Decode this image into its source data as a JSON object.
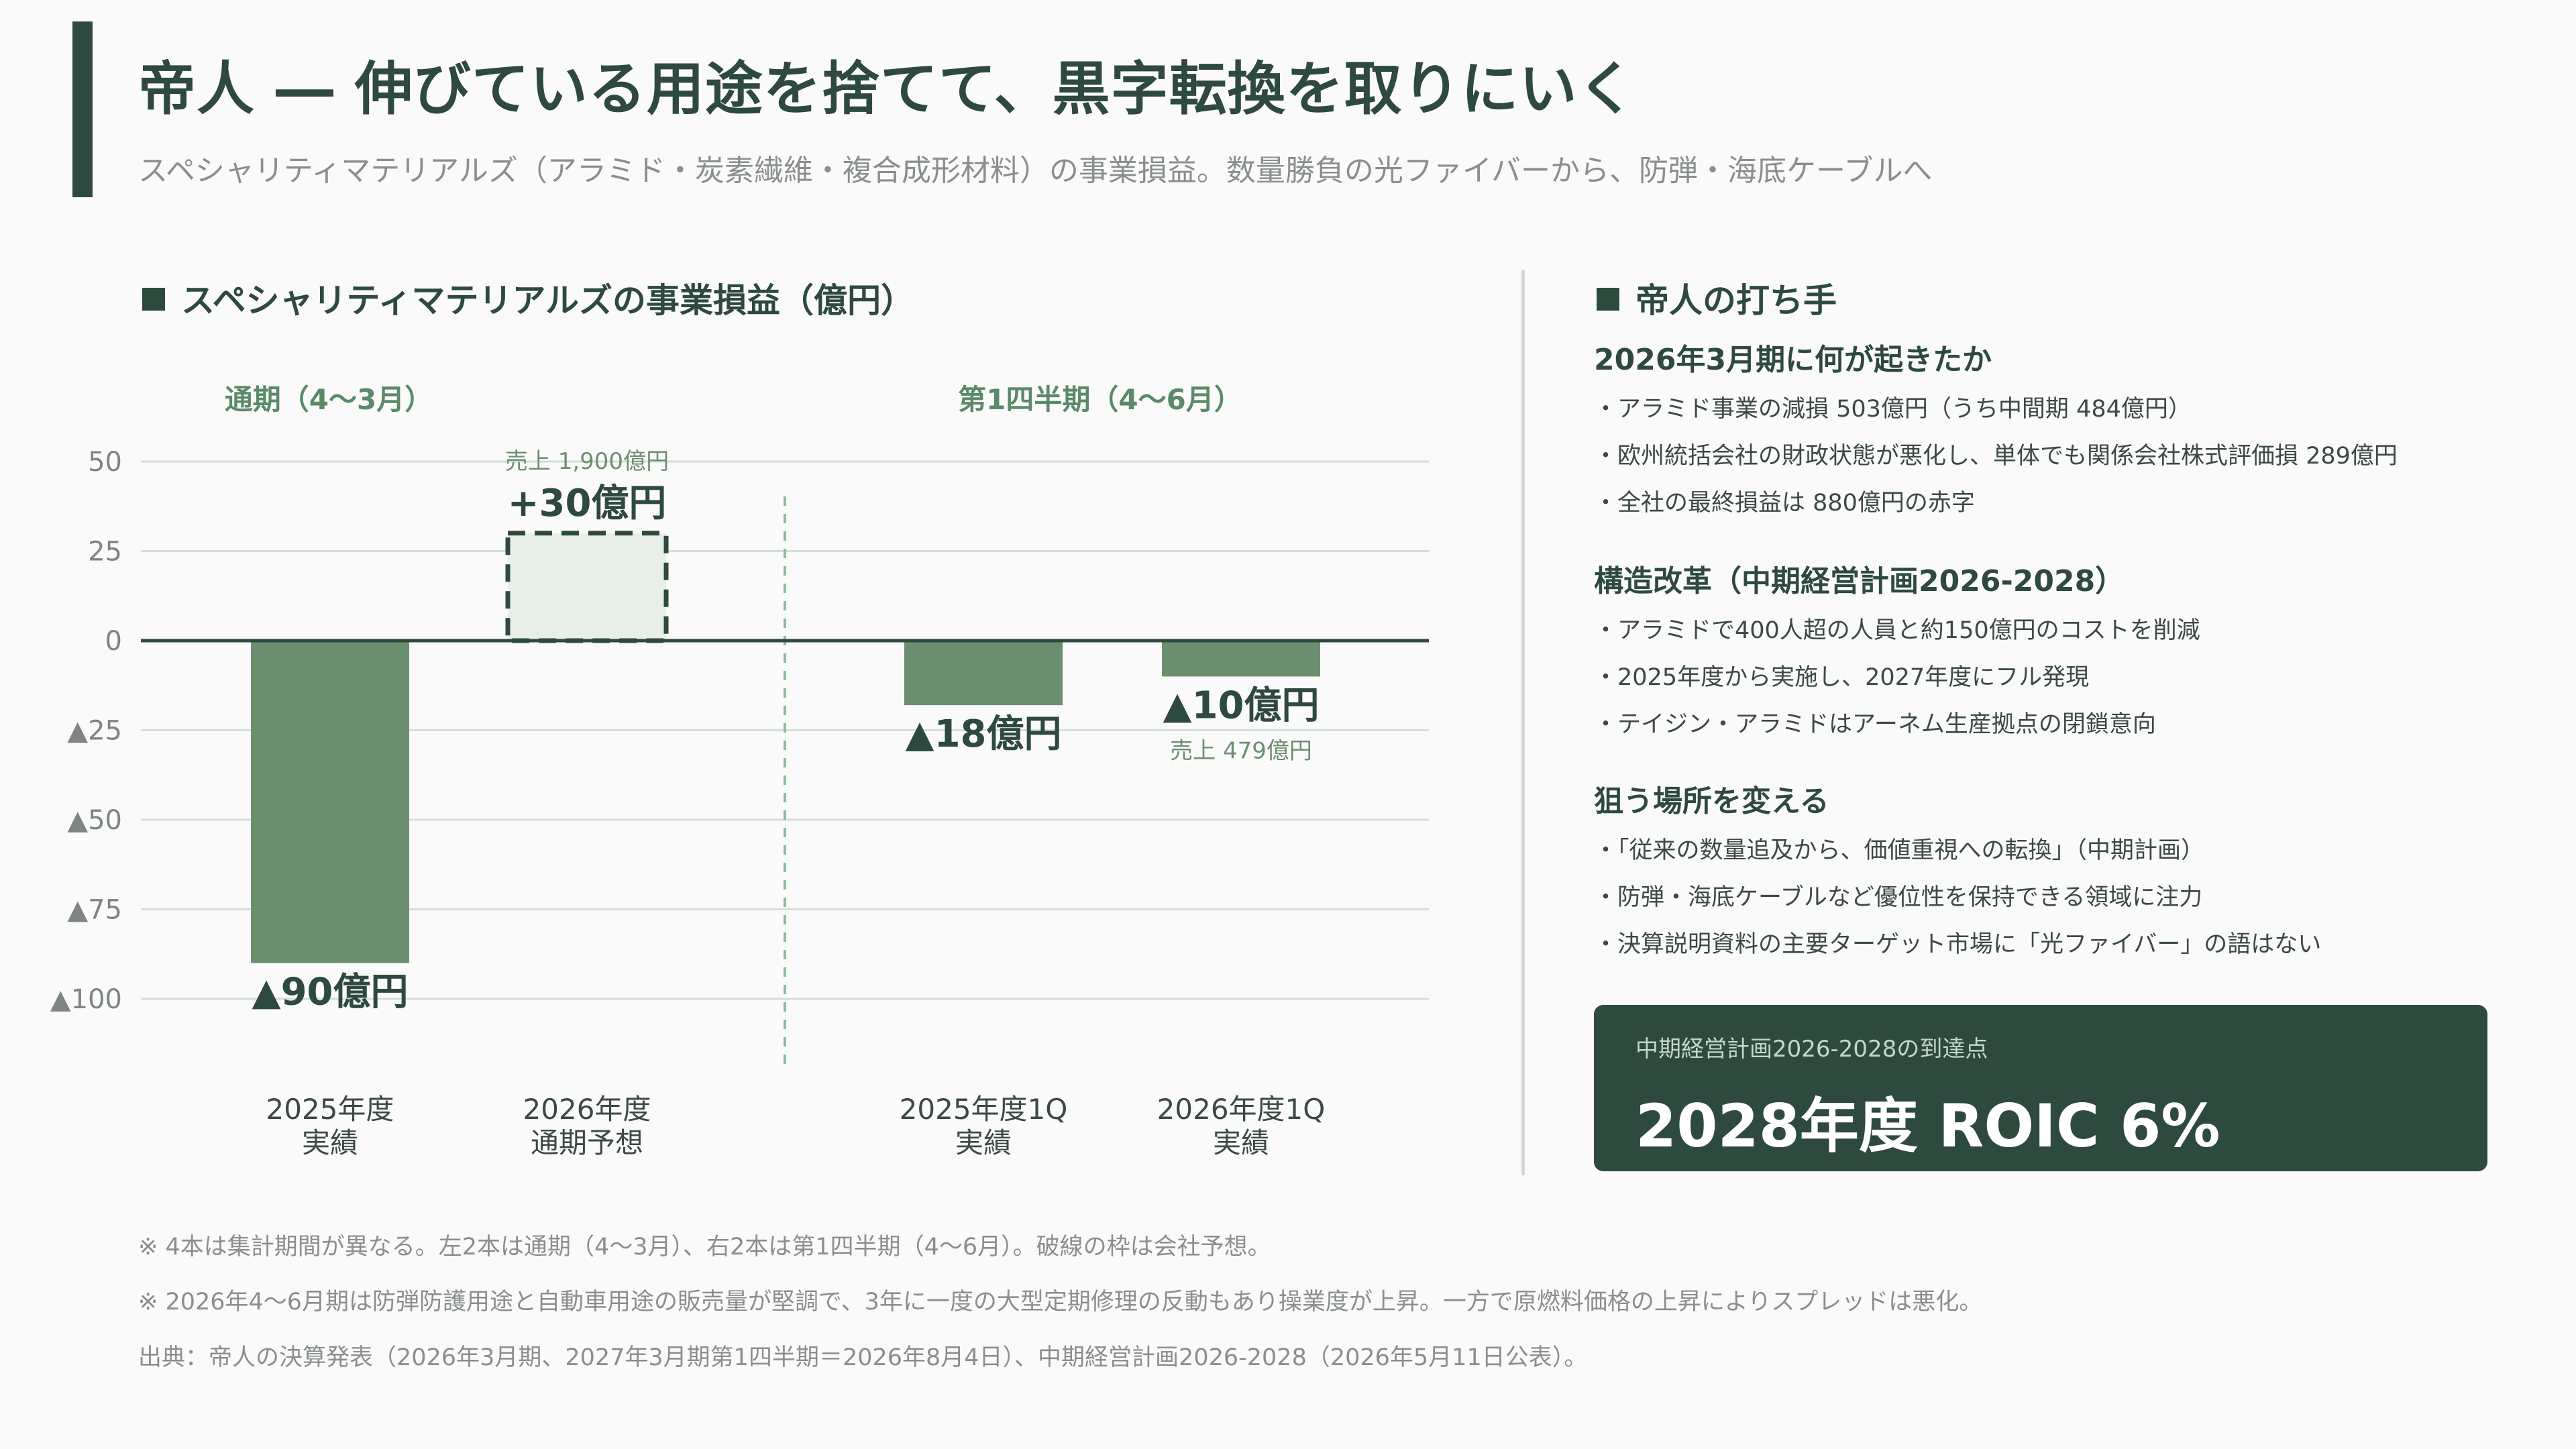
{
  "header": {
    "title": "帝人 ― 伸びている用途を捨てて、黒字転換を取りにいく",
    "subtitle": "スペシャリティマテリアルズ（アラミド・炭素繊維・複合成形材料）の事業損益。数量勝負の光ファイバーから、防弾・海底ケーブルへ"
  },
  "chart_section": {
    "heading": "スペシャリティマテリアルズの事業損益（億円）",
    "period_full": "通期（4〜3月）",
    "period_q1": "第1四半期（4〜6月）"
  },
  "chart_data": {
    "type": "bar",
    "title": "スペシャリティマテリアルズの事業損益（億円）",
    "ylim": [
      -100,
      50
    ],
    "yticks": [
      {
        "value": 50,
        "label": "50"
      },
      {
        "value": 25,
        "label": "25"
      },
      {
        "value": 0,
        "label": "0"
      },
      {
        "value": -25,
        "label": "▲25"
      },
      {
        "value": -50,
        "label": "▲50"
      },
      {
        "value": -75,
        "label": "▲75"
      },
      {
        "value": -100,
        "label": "▲100"
      }
    ],
    "grid": true,
    "bars": [
      {
        "category": [
          "2025年度",
          "実績"
        ],
        "value": -90,
        "label": "▲90億円",
        "forecast": false,
        "note": ""
      },
      {
        "category": [
          "2026年度",
          "通期予想"
        ],
        "value": 30,
        "label": "+30億円",
        "forecast": true,
        "note": "売上 1,900億円"
      },
      {
        "category": [
          "2025年度1Q",
          "実績"
        ],
        "value": -18,
        "label": "▲18億円",
        "forecast": false,
        "note": ""
      },
      {
        "category": [
          "2026年度1Q",
          "実績"
        ],
        "value": -10,
        "label": "▲10億円",
        "forecast": false,
        "note": "売上 479億円"
      }
    ],
    "colors": {
      "bar": "#6b8f6e",
      "forecast_fill": "#e8efe8",
      "forecast_stroke": "#2e4a3e",
      "zero_line": "#2e4a3e",
      "grid": "#d3dfd6",
      "divider": "#8fbb96"
    }
  },
  "side": {
    "heading": "帝人の打ち手",
    "blocks": [
      {
        "title": "2026年3月期に何が起きたか",
        "items": [
          "・アラミド事業の減損 503億円（うち中間期 484億円）",
          "・欧州統括会社の財政状態が悪化し、単体でも関係会社株式評価損 289億円",
          "・全社の最終損益は 880億円の赤字"
        ]
      },
      {
        "title": "構造改革（中期経営計画2026-2028）",
        "items": [
          "・アラミドで400人超の人員と約150億円のコストを削減",
          "・2025年度から実施し、2027年度にフル発現",
          "・テイジン・アラミドはアーネム生産拠点の閉鎖意向"
        ]
      },
      {
        "title": "狙う場所を変える",
        "items": [
          "・「従来の数量追及から、価値重視への転換」（中期計画）",
          "・防弾・海底ケーブルなど優位性を保持できる領域に注力",
          "・決算説明資料の主要ターゲット市場に「光ファイバー」の語はない"
        ]
      }
    ],
    "target_label": "中期経営計画2026-2028の到達点",
    "target_value": "2028年度 ROIC 6%"
  },
  "footnotes": [
    "※ 4本は集計期間が異なる。左2本は通期（4〜3月）、右2本は第1四半期（4〜6月）。破線の枠は会社予想。",
    "※ 2026年4〜6月期は防弾防護用途と自動車用途の販売量が堅調で、3年に一度の大型定期修理の反動もあり操業度が上昇。一方で原燃料価格の上昇によりスプレッドは悪化。",
    "出典：帝人の決算発表（2026年3月期、2027年3月期第1四半期＝2026年8月4日）、中期経営計画2026-2028（2026年5月11日公表）。"
  ]
}
